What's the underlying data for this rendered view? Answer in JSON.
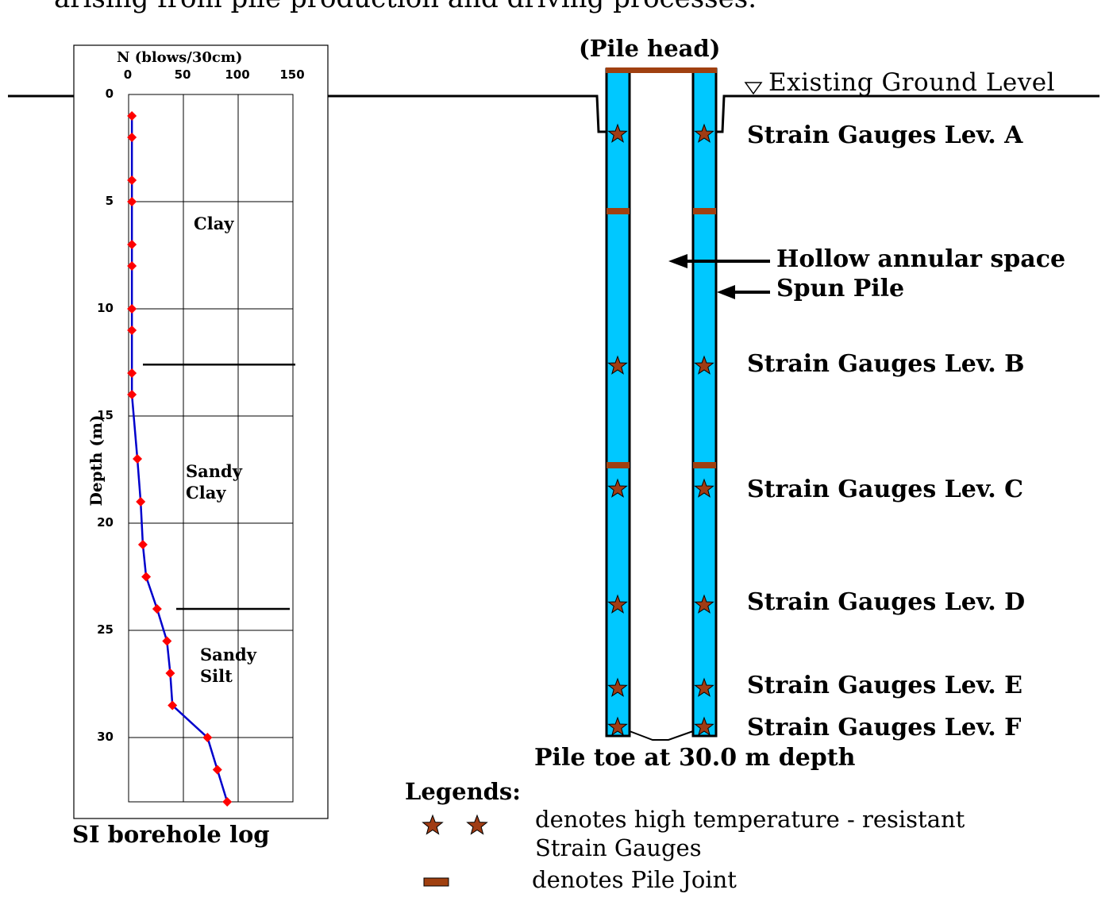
{
  "caption_top": "arising from pile production and driving processes.",
  "borehole": {
    "caption": "SI borehole log",
    "layers": [
      {
        "name": "Clay"
      },
      {
        "name": "Sandy\nClay"
      },
      {
        "name": "Sandy\nSilt"
      }
    ]
  },
  "chart_data": {
    "type": "line",
    "title": "N (blows/30cm)",
    "xlabel": "N (blows/30cm)",
    "ylabel": "Depth (m)",
    "xlim": [
      0,
      150
    ],
    "ylim": [
      0,
      33
    ],
    "y_inverted": true,
    "x_ticks": [
      "0",
      "50",
      "100",
      "150"
    ],
    "y_ticks": [
      "0",
      "5",
      "10",
      "15",
      "20",
      "25",
      "30"
    ],
    "grid": true,
    "layer_boundaries_m": [
      12.6,
      24
    ],
    "series": [
      {
        "color": "#0000cc",
        "marker_color": "#ff0000",
        "points": [
          [
            3,
            1
          ],
          [
            3,
            2
          ],
          [
            3,
            4
          ],
          [
            3,
            5
          ],
          [
            3,
            7
          ],
          [
            3,
            8
          ],
          [
            3,
            10
          ],
          [
            3,
            11
          ],
          [
            3,
            13
          ],
          [
            3,
            14
          ],
          [
            8,
            17
          ],
          [
            11,
            19
          ],
          [
            13,
            21
          ],
          [
            16,
            22.5
          ],
          [
            26,
            24
          ],
          [
            35,
            25.5
          ],
          [
            38,
            27
          ],
          [
            40,
            28.5
          ],
          [
            72,
            30
          ],
          [
            81,
            31.5
          ],
          [
            90,
            33
          ]
        ]
      }
    ]
  },
  "pile": {
    "head_label": "(Pile head)",
    "ground_label": "Existing Ground Level",
    "gauge_labels": [
      "Strain Gauges Lev. A",
      "Strain Gauges Lev. B",
      "Strain Gauges Lev. C",
      "Strain Gauges Lev. D",
      "Strain Gauges Lev. E",
      "Strain Gauges Lev. F"
    ],
    "annotations": {
      "hollow": "Hollow annular space",
      "spun": "Spun Pile"
    },
    "toe_label": "Pile toe  at 30.0 m depth",
    "pile_color": "#00c8ff",
    "gauge_color": "#a03c14",
    "joint_color": "#a04010"
  },
  "legend": {
    "title": "Legends:",
    "gauge_text": "denotes high temperature - resistant\nStrain Gauges",
    "joint_text": "denotes Pile Joint"
  }
}
